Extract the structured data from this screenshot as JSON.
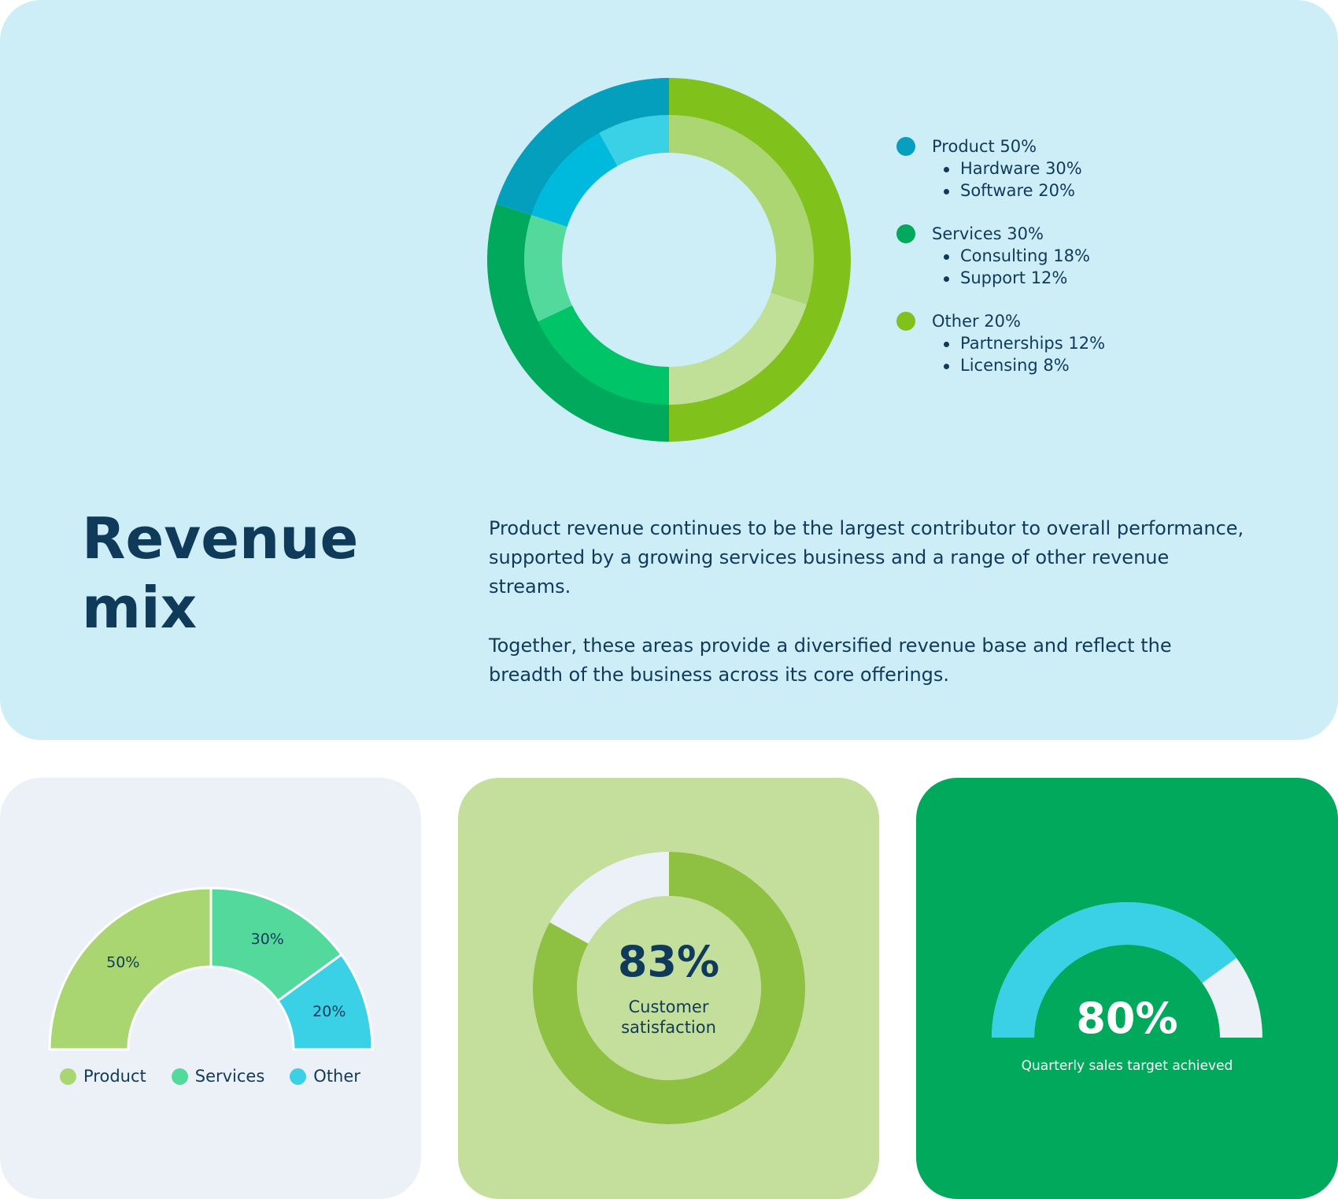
{
  "title": "Revenue mix",
  "paragraphs": [
    "Product revenue continues to be the largest contributor to overall performance, supported by a growing services business and a range of other revenue streams.",
    "Together, these areas provide a diversified revenue base and reflect the breadth of the business across its core offerings."
  ],
  "chart_data": [
    {
      "type": "pie",
      "variant": "nested-donut",
      "title": "",
      "groups": [
        {
          "label": "Product 50%",
          "value": 50,
          "outer_color": "#80c11c",
          "dot_color": "#06a0be",
          "items": [
            {
              "label": "Hardware 30%",
              "value": 30,
              "color": "#acd672"
            },
            {
              "label": "Software 20%",
              "value": 20,
              "color": "#c0e098"
            }
          ]
        },
        {
          "label": "Services 30%",
          "value": 30,
          "outer_color": "#00a95b",
          "dot_color": "#00a95b",
          "items": [
            {
              "label": "Consulting 18%",
              "value": 18,
              "color": "#00c468"
            },
            {
              "label": "Support 12%",
              "value": 12,
              "color": "#53d99b"
            }
          ]
        },
        {
          "label": "Other 20%",
          "value": 20,
          "outer_color": "#059fbe",
          "dot_color": "#80c11c",
          "items": [
            {
              "label": "Partnerships 12%",
              "value": 12,
              "color": "#00bade"
            },
            {
              "label": "Licensing 8%",
              "value": 8,
              "color": "#3ad0e6"
            }
          ]
        }
      ]
    },
    {
      "type": "pie",
      "variant": "semi-donut",
      "title": "",
      "slices": [
        {
          "name": "Product",
          "value": 50,
          "label": "50%",
          "color": "#aad672"
        },
        {
          "name": "Services",
          "value": 30,
          "label": "30%",
          "color": "#53d99b"
        },
        {
          "name": "Other",
          "value": 20,
          "label": "20%",
          "color": "#3ad0e6"
        }
      ],
      "legend": "bottom"
    },
    {
      "type": "pie",
      "variant": "progress-donut",
      "value": 83,
      "value_label": "83%",
      "label": "Customer satisfaction",
      "fill_color": "#8ec042",
      "track_color": "#ecf1f7"
    },
    {
      "type": "pie",
      "variant": "gauge",
      "value": 80,
      "value_label": "80%",
      "label": "Quarterly sales target achieved",
      "fill_color": "#3ad0e6",
      "track_color": "#ecf1f7"
    }
  ]
}
